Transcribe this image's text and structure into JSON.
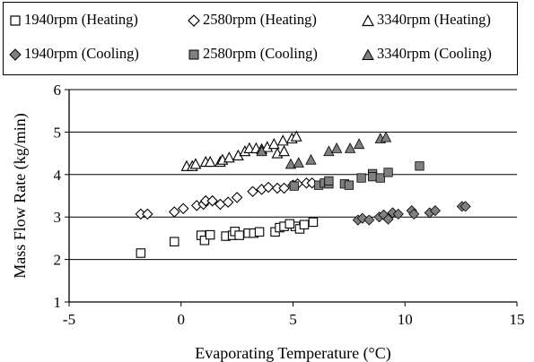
{
  "chart_data": {
    "type": "scatter",
    "title": "",
    "xlabel": "Evaporating Temperature (°C)",
    "ylabel": "Mass Flow Rate (kg/min)",
    "xlim": [
      -5,
      15
    ],
    "ylim": [
      1,
      6
    ],
    "xticks": [
      "-5",
      "0",
      "5",
      "10",
      "15"
    ],
    "yticks": [
      "1",
      "2",
      "3",
      "4",
      "5",
      "6"
    ],
    "grid": "horizontal",
    "legend_position": "top",
    "series": [
      {
        "name": "1940rpm (Heating)",
        "marker": "square-open",
        "color": "#000000",
        "points": [
          [
            -1.8,
            2.15
          ],
          [
            -0.3,
            2.42
          ],
          [
            0.9,
            2.57
          ],
          [
            1.05,
            2.45
          ],
          [
            1.3,
            2.58
          ],
          [
            2.0,
            2.55
          ],
          [
            2.3,
            2.57
          ],
          [
            2.4,
            2.66
          ],
          [
            2.6,
            2.57
          ],
          [
            3.0,
            2.62
          ],
          [
            3.25,
            2.62
          ],
          [
            3.5,
            2.65
          ],
          [
            4.2,
            2.65
          ],
          [
            4.4,
            2.75
          ],
          [
            4.6,
            2.78
          ],
          [
            5.1,
            2.78
          ],
          [
            5.3,
            2.72
          ],
          [
            5.5,
            2.82
          ],
          [
            4.85,
            2.84
          ],
          [
            5.9,
            2.88
          ]
        ]
      },
      {
        "name": "2580rpm (Heating)",
        "marker": "diamond-open",
        "color": "#000000",
        "points": [
          [
            -1.8,
            3.07
          ],
          [
            -1.5,
            3.07
          ],
          [
            -0.3,
            3.12
          ],
          [
            0.1,
            3.2
          ],
          [
            0.7,
            3.27
          ],
          [
            1.0,
            3.3
          ],
          [
            1.1,
            3.38
          ],
          [
            1.4,
            3.38
          ],
          [
            1.75,
            3.3
          ],
          [
            2.1,
            3.35
          ],
          [
            2.5,
            3.46
          ],
          [
            3.2,
            3.6
          ],
          [
            3.6,
            3.65
          ],
          [
            3.9,
            3.7
          ],
          [
            4.3,
            3.68
          ],
          [
            4.6,
            3.68
          ],
          [
            5.0,
            3.75
          ],
          [
            5.2,
            3.78
          ],
          [
            5.6,
            3.8
          ],
          [
            5.85,
            3.8
          ]
        ]
      },
      {
        "name": "3340rpm (Heating)",
        "marker": "triangle-open",
        "color": "#000000",
        "points": [
          [
            0.25,
            4.2
          ],
          [
            0.5,
            4.2
          ],
          [
            0.65,
            4.25
          ],
          [
            1.1,
            4.3
          ],
          [
            1.3,
            4.3
          ],
          [
            1.75,
            4.3
          ],
          [
            1.85,
            4.35
          ],
          [
            2.15,
            4.4
          ],
          [
            2.55,
            4.45
          ],
          [
            2.85,
            4.55
          ],
          [
            3.05,
            4.62
          ],
          [
            3.35,
            4.62
          ],
          [
            3.6,
            4.6
          ],
          [
            3.85,
            4.65
          ],
          [
            4.15,
            4.72
          ],
          [
            4.3,
            4.5
          ],
          [
            4.6,
            4.55
          ],
          [
            4.55,
            4.8
          ],
          [
            4.95,
            4.85
          ],
          [
            5.15,
            4.9
          ]
        ]
      },
      {
        "name": "1940rpm (Cooling)",
        "marker": "diamond-filled",
        "color": "#808080",
        "points": [
          [
            7.9,
            2.93
          ],
          [
            8.1,
            2.97
          ],
          [
            8.4,
            2.93
          ],
          [
            8.85,
            3.0
          ],
          [
            9.05,
            3.05
          ],
          [
            9.25,
            2.95
          ],
          [
            9.45,
            3.1
          ],
          [
            9.7,
            3.07
          ],
          [
            10.3,
            3.15
          ],
          [
            10.4,
            3.07
          ],
          [
            11.1,
            3.1
          ],
          [
            11.35,
            3.15
          ],
          [
            12.55,
            3.25
          ],
          [
            12.7,
            3.25
          ]
        ]
      },
      {
        "name": "2580rpm (Cooling)",
        "marker": "square-filled",
        "color": "#808080",
        "points": [
          [
            5.05,
            3.73
          ],
          [
            6.15,
            3.75
          ],
          [
            6.4,
            3.8
          ],
          [
            6.6,
            3.78
          ],
          [
            6.6,
            3.85
          ],
          [
            7.3,
            3.78
          ],
          [
            7.5,
            3.75
          ],
          [
            8.05,
            3.92
          ],
          [
            8.55,
            4.02
          ],
          [
            8.55,
            3.95
          ],
          [
            8.9,
            3.92
          ],
          [
            9.25,
            4.05
          ],
          [
            10.65,
            4.2
          ]
        ]
      },
      {
        "name": "3340rpm (Cooling)",
        "marker": "triangle-filled",
        "color": "#808080",
        "points": [
          [
            3.6,
            4.55
          ],
          [
            4.9,
            4.25
          ],
          [
            5.25,
            4.28
          ],
          [
            5.8,
            4.35
          ],
          [
            6.6,
            4.55
          ],
          [
            6.95,
            4.62
          ],
          [
            7.55,
            4.62
          ],
          [
            7.95,
            4.72
          ],
          [
            8.9,
            4.85
          ],
          [
            9.15,
            4.88
          ]
        ]
      }
    ]
  }
}
